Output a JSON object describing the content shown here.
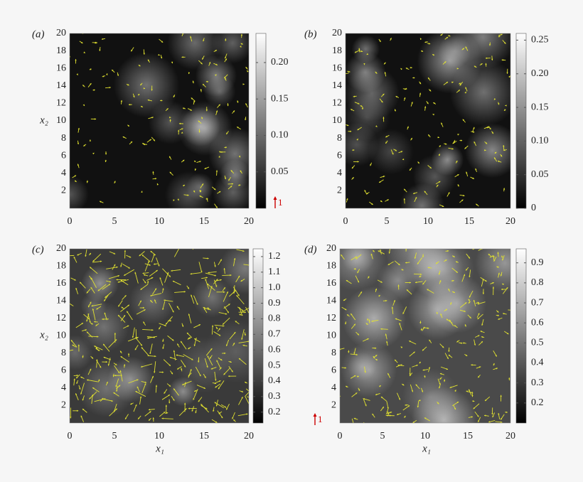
{
  "chart_data": [
    {
      "type": "heatmap",
      "panel_label": "(a)",
      "y_label": "x₂",
      "xlim": [
        0,
        20
      ],
      "ylim": [
        0,
        20
      ],
      "xticks": [
        0,
        5,
        10,
        15,
        20
      ],
      "yticks": [
        2,
        4,
        6,
        8,
        10,
        12,
        14,
        16,
        18,
        20
      ],
      "clim": [
        0,
        0.24
      ],
      "cticks": [
        0.05,
        {
          "value": 0.1,
          "label": "0.10"
        },
        0.15,
        {
          "value": 0.2,
          "label": "0.20"
        }
      ],
      "vector_color": "#e0e030",
      "quiver_scale": 1
    },
    {
      "type": "heatmap",
      "panel_label": "(b)",
      "xlim": [
        0,
        20
      ],
      "ylim": [
        0,
        20
      ],
      "xticks": [
        0,
        5,
        10,
        15,
        20
      ],
      "yticks": [
        2,
        4,
        6,
        8,
        10,
        12,
        14,
        16,
        18,
        20
      ],
      "clim": [
        0,
        0.26
      ],
      "cticks": [
        0,
        0.05,
        {
          "value": 0.1,
          "label": "0.10"
        },
        0.15,
        {
          "value": 0.2,
          "label": "0.20"
        },
        0.25
      ],
      "vector_color": "#e0e030"
    },
    {
      "type": "heatmap",
      "panel_label": "(c)",
      "x_label": "x₁",
      "y_label": "x₂",
      "xlim": [
        0,
        20
      ],
      "ylim": [
        0,
        20
      ],
      "xticks": [
        0,
        5,
        10,
        15,
        20
      ],
      "yticks": [
        2,
        4,
        6,
        8,
        10,
        12,
        14,
        16,
        18,
        20
      ],
      "clim": [
        0.13,
        1.25
      ],
      "cticks": [
        0.2,
        0.3,
        0.4,
        0.5,
        0.6,
        0.7,
        0.8,
        0.9,
        {
          "value": 1,
          "label": "1.0"
        },
        1.1,
        1.2
      ],
      "vector_color": "#e0e030"
    },
    {
      "type": "heatmap",
      "panel_label": "(d)",
      "x_label": "x₁",
      "xlim": [
        0,
        20
      ],
      "ylim": [
        0,
        20
      ],
      "xticks": [
        0,
        5,
        10,
        15,
        20
      ],
      "yticks": [
        2,
        4,
        6,
        8,
        10,
        12,
        14,
        16,
        18,
        20
      ],
      "clim": [
        0.1,
        0.97
      ],
      "cticks": [
        0.2,
        0.3,
        0.4,
        0.5,
        0.6,
        0.7,
        0.8,
        0.9
      ],
      "vector_color": "#e0e030",
      "quiver_scale": 1
    }
  ]
}
